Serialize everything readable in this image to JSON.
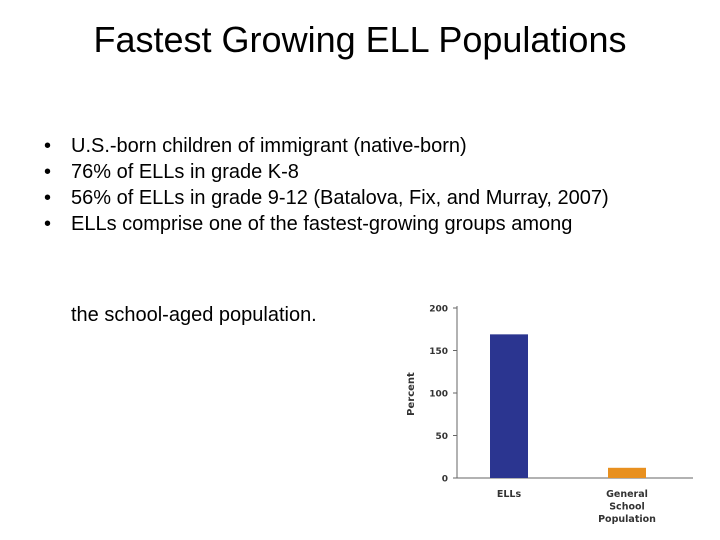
{
  "slide": {
    "title": "Fastest Growing ELL Populations",
    "bullets": [
      "U.S.-born children of immigrant (native-born)",
      "76% of ELLs in grade K-8",
      "56% of ELLs in grade 9-12 (Batalova, Fix, and Murray, 2007)",
      "ELLs comprise one of the fastest-growing groups among"
    ],
    "bullet_tail": "the school-aged population."
  },
  "chart_data": {
    "type": "bar",
    "categories": [
      "ELLs",
      "General School Population"
    ],
    "category_lines": [
      [
        "ELLs"
      ],
      [
        "General",
        "School",
        "Population"
      ]
    ],
    "values": [
      169,
      12
    ],
    "colors": [
      "#2b3590",
      "#e8901f"
    ],
    "ylabel": "Percent",
    "ylim": [
      0,
      200
    ],
    "yticks": [
      0,
      50,
      100,
      150,
      200
    ],
    "grid": false,
    "legend": "none"
  }
}
